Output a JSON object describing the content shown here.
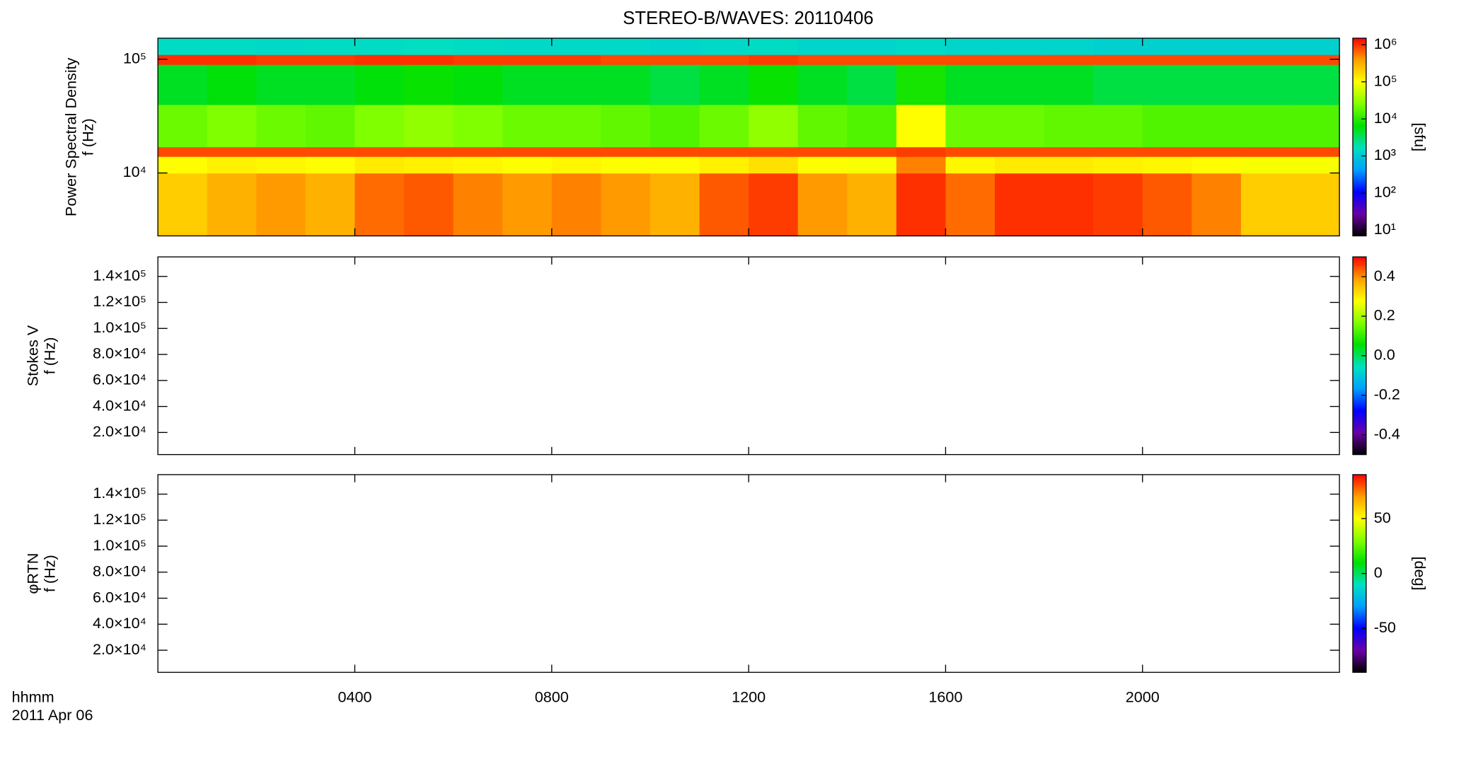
{
  "title": "STEREO-B/WAVES: 20110406",
  "x_axis": {
    "label": "hhmm",
    "date": "2011 Apr 06",
    "xlim": [
      0,
      24
    ],
    "xticks": [
      {
        "value": 4,
        "label": "0400"
      },
      {
        "value": 8,
        "label": "0800"
      },
      {
        "value": 12,
        "label": "1200"
      },
      {
        "value": 16,
        "label": "1600"
      },
      {
        "value": 20,
        "label": "2000"
      }
    ]
  },
  "colormap": [
    "#000000",
    "#6a00a8",
    "#0000ff",
    "#00a0ff",
    "#00e0c0",
    "#00e000",
    "#80ff00",
    "#ffff00",
    "#ffa000",
    "#ff0000"
  ],
  "chart_data": [
    {
      "type": "spectrogram",
      "ylabel": [
        "Power Spectral Density",
        "f (Hz)"
      ],
      "ylog": true,
      "ylim": [
        2800,
        153000
      ],
      "yticks": [
        {
          "value": 10000,
          "label": "10⁴"
        },
        {
          "value": 100000,
          "label": "10⁵"
        }
      ],
      "time_bins": [
        0,
        1,
        2,
        3,
        4,
        5,
        6,
        7,
        8,
        9,
        10,
        11,
        12,
        13,
        14,
        15,
        16,
        17,
        18,
        19,
        20,
        21,
        22,
        23,
        24
      ],
      "y_edges": [
        2800,
        10000,
        14000,
        17000,
        40000,
        90000,
        110000,
        153000
      ],
      "values": [
        [
          200000,
          300000,
          400000,
          300000,
          600000,
          700000,
          500000,
          400000,
          500000,
          400000,
          300000,
          700000,
          900000,
          400000,
          300000,
          1000000,
          600000,
          1000000,
          1000000,
          900000,
          700000,
          500000,
          200000,
          200000
        ],
        [
          100000,
          120000,
          110000,
          100000,
          130000,
          120000,
          110000,
          100000,
          110000,
          100000,
          100000,
          120000,
          150000,
          100000,
          90000,
          500000,
          110000,
          130000,
          130000,
          120000,
          110000,
          100000,
          90000,
          90000
        ],
        [
          800000,
          800000,
          800000,
          800000,
          800000,
          800000,
          800000,
          800000,
          800000,
          800000,
          800000,
          800000,
          800000,
          800000,
          800000,
          900000,
          800000,
          800000,
          800000,
          800000,
          800000,
          800000,
          800000,
          800000
        ],
        [
          20000,
          25000,
          20000,
          18000,
          25000,
          30000,
          25000,
          20000,
          20000,
          18000,
          15000,
          20000,
          30000,
          18000,
          15000,
          100000,
          20000,
          20000,
          18000,
          18000,
          15000,
          15000,
          15000,
          15000
        ],
        [
          5000,
          6000,
          5000,
          5000,
          6000,
          7000,
          6000,
          5000,
          5000,
          5000,
          4000,
          5000,
          7000,
          5000,
          4000,
          8000,
          5000,
          5000,
          5000,
          4000,
          4000,
          4000,
          4000,
          4000
        ],
        [
          1000000,
          1000000,
          900000,
          900000,
          1000000,
          1000000,
          900000,
          900000,
          900000,
          800000,
          800000,
          800000,
          900000,
          800000,
          800000,
          800000,
          800000,
          800000,
          800000,
          800000,
          800000,
          800000,
          800000,
          800000
        ],
        [
          1500,
          1500,
          1400,
          1500,
          1500,
          1600,
          1500,
          1400,
          1400,
          1400,
          1300,
          1400,
          1500,
          1300,
          1300,
          1400,
          1300,
          1300,
          1300,
          1200,
          1200,
          1200,
          1200,
          1200
        ]
      ],
      "clog": true,
      "clim": [
        7,
        1500000
      ],
      "clabel": "[sfu]",
      "cticks": [
        {
          "value": 10,
          "label": "10¹"
        },
        {
          "value": 100,
          "label": "10²"
        },
        {
          "value": 1000,
          "label": "10³"
        },
        {
          "value": 10000,
          "label": "10⁴"
        },
        {
          "value": 100000,
          "label": "10⁵"
        },
        {
          "value": 1000000,
          "label": "10⁶"
        }
      ]
    },
    {
      "type": "spectrogram",
      "ylabel": [
        "Stokes V",
        "f (Hz)"
      ],
      "ylog": false,
      "ylim": [
        3000,
        155000
      ],
      "yticks": [
        {
          "value": 20000,
          "label": "2.0×10⁴"
        },
        {
          "value": 40000,
          "label": "4.0×10⁴"
        },
        {
          "value": 60000,
          "label": "6.0×10⁴"
        },
        {
          "value": 80000,
          "label": "8.0×10⁴"
        },
        {
          "value": 100000,
          "label": "1.0×10⁵"
        },
        {
          "value": 120000,
          "label": "1.2×10⁵"
        },
        {
          "value": 140000,
          "label": "1.4×10⁵"
        }
      ],
      "clog": false,
      "clim": [
        -0.5,
        0.5
      ],
      "cticks": [
        -0.4,
        -0.2,
        {
          "value": 0,
          "label": "0.0"
        },
        0.2,
        0.4
      ]
    },
    {
      "type": "spectrogram",
      "ylabel": [
        "φRTN",
        "f (Hz)"
      ],
      "ylog": false,
      "ylim": [
        3000,
        155000
      ],
      "yticks": [
        {
          "value": 20000,
          "label": "2.0×10⁴"
        },
        {
          "value": 40000,
          "label": "4.0×10⁴"
        },
        {
          "value": 60000,
          "label": "6.0×10⁴"
        },
        {
          "value": 80000,
          "label": "8.0×10⁴"
        },
        {
          "value": 100000,
          "label": "1.0×10⁵"
        },
        {
          "value": 120000,
          "label": "1.2×10⁵"
        },
        {
          "value": 140000,
          "label": "1.4×10⁵"
        }
      ],
      "clog": false,
      "clim": [
        -90,
        90
      ],
      "clabel": "[deg]",
      "cticks": [
        -50,
        0,
        50
      ]
    }
  ]
}
